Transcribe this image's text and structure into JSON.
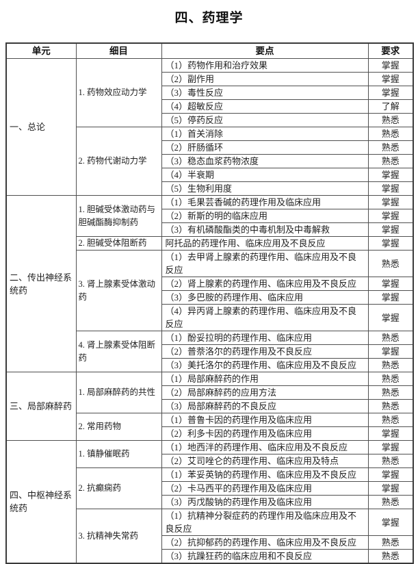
{
  "page": {
    "title": "四、药理学"
  },
  "table": {
    "headers": [
      "单元",
      "细目",
      "要点",
      "要求"
    ],
    "units": [
      {
        "name": "一、总论",
        "items": [
          {
            "name": "1. 药物效应动力学",
            "points": [
              {
                "text": "（1）药物作用和治疗效果",
                "req": "掌握"
              },
              {
                "text": "（2）副作用",
                "req": "掌握"
              },
              {
                "text": "（3）毒性反应",
                "req": "掌握"
              },
              {
                "text": "（4）超敏反应",
                "req": "了解"
              },
              {
                "text": "（5）停药反应",
                "req": "熟悉"
              }
            ]
          },
          {
            "name": "2. 药物代谢动力学",
            "points": [
              {
                "text": "（1）首关消除",
                "req": "熟悉"
              },
              {
                "text": "（2）肝肠循环",
                "req": "熟悉"
              },
              {
                "text": "（3）稳态血浆药物浓度",
                "req": "熟悉"
              },
              {
                "text": "（4）半衰期",
                "req": "掌握"
              },
              {
                "text": "（5）生物利用度",
                "req": "掌握"
              }
            ]
          }
        ]
      },
      {
        "name": "二、传出神经系统药",
        "items": [
          {
            "name": "1. 胆碱受体激动药与胆碱酯酶抑制药",
            "points": [
              {
                "text": "（1）毛果芸香碱的药理作用及临床应用",
                "req": "掌握"
              },
              {
                "text": "（2）新斯的明的临床应用",
                "req": "掌握"
              },
              {
                "text": "（3）有机磷酸酯类的中毒机制及中毒解救",
                "req": "掌握"
              }
            ]
          },
          {
            "name": "2. 胆碱受体阻断药",
            "points": [
              {
                "text": "阿托品的药理作用、临床应用及不良反应",
                "req": "掌握"
              }
            ]
          },
          {
            "name": "3. 肾上腺素受体激动药",
            "points": [
              {
                "text": "（1）去甲肾上腺素的药理作用、临床应用及不良反应",
                "req": "熟悉"
              },
              {
                "text": "（2）肾上腺素的药理作用、临床应用及不良反应",
                "req": "掌握"
              },
              {
                "text": "（3）多巴胺的药理作用、临床应用",
                "req": "掌握"
              },
              {
                "text": "（4）异丙肾上腺素的药理作用、临床应用及不良反应",
                "req": "掌握"
              }
            ]
          },
          {
            "name": "4. 肾上腺素受体阻断药",
            "points": [
              {
                "text": "（1）酚妥拉明的药理作用、临床应用",
                "req": "熟悉"
              },
              {
                "text": "（2）普萘洛尔的药理作用及不良反应",
                "req": "掌握"
              },
              {
                "text": "（3）美托洛尔的药理作用、临床应用及不良反应",
                "req": "熟悉"
              }
            ]
          }
        ]
      },
      {
        "name": "三、局部麻醉药",
        "items": [
          {
            "name": "1. 局部麻醉药的共性",
            "points": [
              {
                "text": "（1）局部麻醉药的作用",
                "req": "熟悉"
              },
              {
                "text": "（2）局部麻醉药的应用方法",
                "req": "熟悉"
              },
              {
                "text": "（3）局部麻醉药的不良反应",
                "req": "熟悉"
              }
            ]
          },
          {
            "name": "2. 常用药物",
            "points": [
              {
                "text": "（1）普鲁卡因的药理作用及临床应用",
                "req": "熟悉"
              },
              {
                "text": "（2）利多卡因的药理作用及临床应用",
                "req": "掌握"
              }
            ]
          }
        ]
      },
      {
        "name": "四、中枢神经系统药",
        "items": [
          {
            "name": "1. 镇静催眠药",
            "points": [
              {
                "text": "（1）地西泮的药理作用、临床应用及不良反应",
                "req": "掌握"
              },
              {
                "text": "（2）艾司唑仑的药理作用、临床应用及特点",
                "req": "熟悉"
              }
            ]
          },
          {
            "name": "2. 抗癫痫药",
            "points": [
              {
                "text": "（1）苯妥英钠的药理作用、临床应用及不良反应",
                "req": "掌握"
              },
              {
                "text": "（2）卡马西平的药理作用及临床应用",
                "req": "掌握"
              },
              {
                "text": "（3）丙戊酸钠的药理作用及临床应用",
                "req": "熟悉"
              }
            ]
          },
          {
            "name": "3. 抗精神失常药",
            "points": [
              {
                "text": "（1）抗精神分裂症药的药理作用及临床应用及不良反应",
                "req": "掌握"
              },
              {
                "text": "（2）抗抑郁药的药理作用、临床应用及不良反应",
                "req": "熟悉"
              },
              {
                "text": "（3）抗躁狂药的临床应用和不良反应",
                "req": "熟悉"
              }
            ]
          }
        ]
      }
    ]
  }
}
